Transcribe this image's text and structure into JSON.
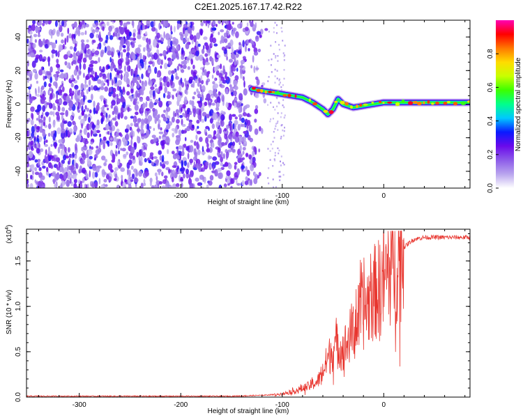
{
  "title": "C2E1.2025.167.17.42.R22",
  "colors": {
    "snr_line": "#e8352e",
    "colormap": [
      "#ffffff",
      "#b9a5ee",
      "#8d5ce9",
      "#6a0aeb",
      "#0a1aff",
      "#00c8ff",
      "#00ff8c",
      "#3cff00",
      "#c8ff00",
      "#ffdc00",
      "#ff7800",
      "#ff0000",
      "#ff00b4"
    ]
  },
  "chart_data": [
    {
      "type": "heatmap",
      "name": "spectrogram",
      "xlabel": "Height of straight line (km)",
      "ylabel": "Frequency (Hz)",
      "xlim": [
        -352,
        85
      ],
      "ylim": [
        -50,
        50
      ],
      "x_ticks": [
        -300,
        -200,
        -100,
        0
      ],
      "x_tick_labels": [
        "-300",
        "-200",
        "-100",
        "0"
      ],
      "y_ticks": [
        -40,
        -20,
        0,
        20,
        40
      ],
      "y_tick_labels": [
        "-40",
        "-20",
        "0",
        "20",
        "40"
      ],
      "colorbar": {
        "label": "Normalized spectral amplitude",
        "range": [
          0,
          1
        ],
        "ticks": [
          0.0,
          0.2,
          0.4,
          0.6,
          0.8
        ],
        "tick_labels": [
          "0.0",
          "0.2",
          "0.4",
          "0.6",
          "0.8"
        ]
      },
      "noise_region_x": [
        -352,
        -115
      ],
      "signal_track": {
        "x": [
          -130,
          -120,
          -110,
          -100,
          -90,
          -80,
          -70,
          -60,
          -55,
          -50,
          -45,
          -40,
          -30,
          -20,
          -10,
          0,
          10,
          20,
          40,
          60,
          85
        ],
        "freq": [
          9,
          8,
          7,
          6,
          5,
          4,
          1,
          -3,
          -6,
          -3,
          3,
          0,
          -2,
          -1,
          0,
          1,
          1,
          1,
          1,
          1,
          1
        ]
      }
    },
    {
      "type": "line",
      "name": "snr",
      "xlabel": "Height of straight line (km)",
      "ylabel": "SNR (10 * v/v)",
      "y_scale_label": "(x10",
      "y_scale_exp": "4",
      "xlim": [
        -352,
        85
      ],
      "ylim": [
        0,
        1.85
      ],
      "x_ticks": [
        -300,
        -200,
        -100,
        0
      ],
      "x_tick_labels": [
        "-300",
        "-200",
        "-100",
        "0"
      ],
      "y_ticks": [
        0.0,
        0.5,
        1.0,
        1.5
      ],
      "y_tick_labels": [
        "0.0",
        "0.5",
        "1.0",
        "1.5"
      ],
      "series": [
        {
          "x": [
            -352,
            -300,
            -250,
            -200,
            -150,
            -120,
            -105,
            -95,
            -85,
            -75,
            -65,
            -60,
            -55,
            -50,
            -45,
            -40,
            -35,
            -30,
            -25,
            -20,
            -15,
            -10,
            -5,
            0,
            5,
            10,
            15,
            20,
            25,
            30,
            40,
            50,
            60,
            70,
            85
          ],
          "values": [
            0.01,
            0.01,
            0.01,
            0.01,
            0.01,
            0.02,
            0.03,
            0.05,
            0.08,
            0.12,
            0.18,
            0.3,
            0.45,
            0.55,
            0.6,
            0.55,
            0.65,
            0.8,
            0.9,
            1.0,
            1.1,
            1.2,
            1.25,
            1.35,
            1.45,
            1.55,
            1.6,
            1.65,
            1.7,
            1.74,
            1.76,
            1.76,
            1.76,
            1.76,
            1.76
          ]
        }
      ]
    }
  ]
}
